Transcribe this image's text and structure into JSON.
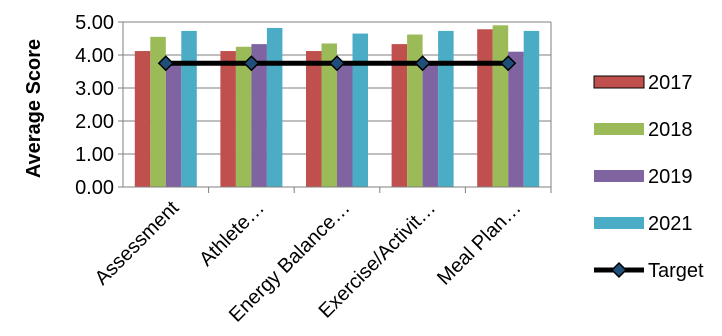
{
  "chart_data": {
    "type": "bar",
    "title": "",
    "xlabel": "",
    "ylabel": "Average Score",
    "ylim": [
      0,
      5
    ],
    "yticks": [
      "0.00",
      "1.00",
      "2.00",
      "3.00",
      "4.00",
      "5.00"
    ],
    "grid": true,
    "legend_position": "right",
    "categories": [
      "Assessment",
      "Athlete…",
      "Energy Balance…",
      "Exercise/Activit…",
      "Meal Plan…"
    ],
    "series": [
      {
        "name": "2017",
        "color": "#C0504D",
        "values": [
          4.12,
          4.12,
          4.12,
          4.33,
          4.78
        ]
      },
      {
        "name": "2018",
        "color": "#9BBB59",
        "values": [
          4.55,
          4.25,
          4.35,
          4.62,
          4.9
        ]
      },
      {
        "name": "2019",
        "color": "#8064A2",
        "values": [
          3.7,
          4.33,
          3.8,
          3.7,
          4.1
        ]
      },
      {
        "name": "2021",
        "color": "#4BACC6",
        "values": [
          4.73,
          4.82,
          4.65,
          4.73,
          4.73
        ]
      }
    ],
    "target": {
      "name": "Target",
      "value": 3.75,
      "line_color": "#000000",
      "marker_color": "#1F4E79"
    }
  }
}
